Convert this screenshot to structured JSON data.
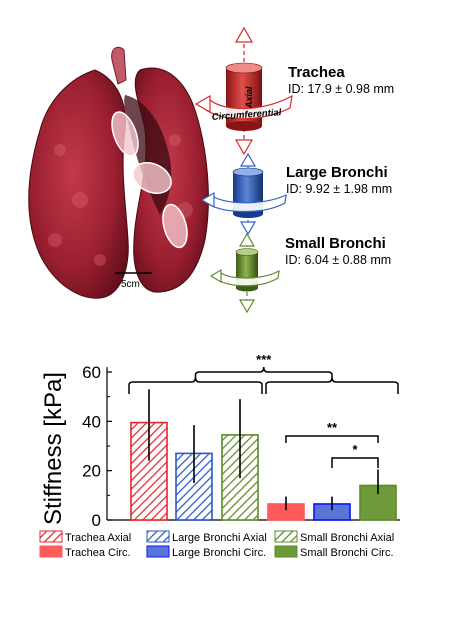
{
  "photo": {
    "scale_label": "5cm"
  },
  "airways": [
    {
      "key": "trachea",
      "name": "Trachea",
      "id_text": "ID: 17.9 ± 0.98 mm",
      "color": "#d92a2a"
    },
    {
      "key": "large",
      "name": "Large Bronchi",
      "id_text": "ID: 9.92 ± 1.98 mm",
      "color": "#2f63c8"
    },
    {
      "key": "small",
      "name": "Small Bronchi",
      "id_text": "ID: 6.04 ± 0.88 mm",
      "color": "#5e8b2a"
    }
  ],
  "diagram_labels": {
    "axial": "Axial",
    "circumferential": "Circumferential"
  },
  "chart_data": {
    "type": "bar",
    "ylabel": "Stiffness [kPa]",
    "ylim": [
      0,
      62
    ],
    "yticks": [
      0,
      20,
      40,
      60
    ],
    "categories": [
      "Trachea Axial",
      "Large Bronchi Axial",
      "Small Bronchi Axial",
      "Trachea Circ.",
      "Large Bronchi Circ.",
      "Small Bronchi Circ."
    ],
    "values": [
      39.5,
      27,
      34.5,
      6.5,
      6.5,
      14
    ],
    "errors": [
      [
        24,
        53
      ],
      [
        15,
        38.5
      ],
      [
        17,
        49
      ],
      [
        4,
        9.5
      ],
      [
        4,
        9.5
      ],
      [
        10.5,
        20.5
      ]
    ],
    "colors": [
      "#e8262c",
      "#2a55c8",
      "#5e8b2a",
      "#ff5a5a",
      "#0a14ff",
      "#5e8b2a"
    ],
    "hatched": [
      true,
      true,
      true,
      false,
      false,
      false
    ],
    "fills": [
      "#ffffff",
      "#ffffff",
      "#ffffff",
      "#ff5a5a",
      "#5a74d8",
      "#6f9a3a"
    ],
    "significance": [
      {
        "label": "***",
        "level": "top"
      },
      {
        "label": "**",
        "level": "mid"
      },
      {
        "label": "*",
        "level": "low"
      }
    ],
    "legend": [
      "Trachea Axial",
      "Large Bronchi Axial",
      "Small Bronchi Axial",
      "Trachea Circ.",
      "Large Bronchi Circ.",
      "Small Bronchi Circ."
    ],
    "legend_placement": "bottom",
    "grid": false
  }
}
